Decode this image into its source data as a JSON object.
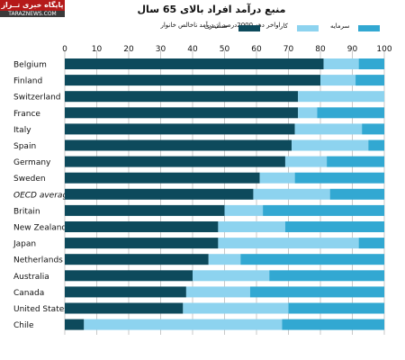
{
  "logo": {
    "line1": "پایگاه خبری تــراز",
    "line2": "TARAZNEWS.COM"
  },
  "chart_data": {
    "type": "bar",
    "stacked": true,
    "orientation": "horizontal",
    "title": "منبع درآمد افراد بالای 65 سال",
    "subtitle": "اواخر دهه 2000درصد از درآمد ناخالص خانوار",
    "xlim": [
      0,
      100
    ],
    "xticks": [
      "0",
      "10",
      "20",
      "30",
      "40",
      "50",
      "60",
      "70",
      "80",
      "90",
      "100"
    ],
    "legend_position": "top-right",
    "categories": [
      "Belgium",
      "Finland",
      "Switzerland",
      "France",
      "Italy",
      "Spain",
      "Germany",
      "Sweden",
      "OECD average",
      "Britain",
      "New Zealand",
      "Japan",
      "Netherlands",
      "Australia",
      "Canada",
      "United States",
      "Chile"
    ],
    "italic_categories": [
      "OECD average"
    ],
    "series": [
      {
        "name": "مستمری",
        "color": "#0d4a5c",
        "values": [
          81,
          80,
          73,
          73,
          72,
          71,
          69,
          61,
          59,
          50,
          48,
          48,
          45,
          40,
          38,
          37,
          6
        ]
      },
      {
        "name": "کار",
        "color": "#8dd3ef",
        "values": [
          11,
          11,
          27,
          6,
          21,
          24,
          13,
          11,
          24,
          12,
          21,
          44,
          10,
          24,
          20,
          33,
          62
        ]
      },
      {
        "name": "سرمایه",
        "color": "#32a8d2",
        "values": [
          8,
          9,
          0,
          21,
          7,
          5,
          18,
          28,
          17,
          38,
          31,
          8,
          45,
          36,
          42,
          30,
          32
        ]
      }
    ]
  }
}
